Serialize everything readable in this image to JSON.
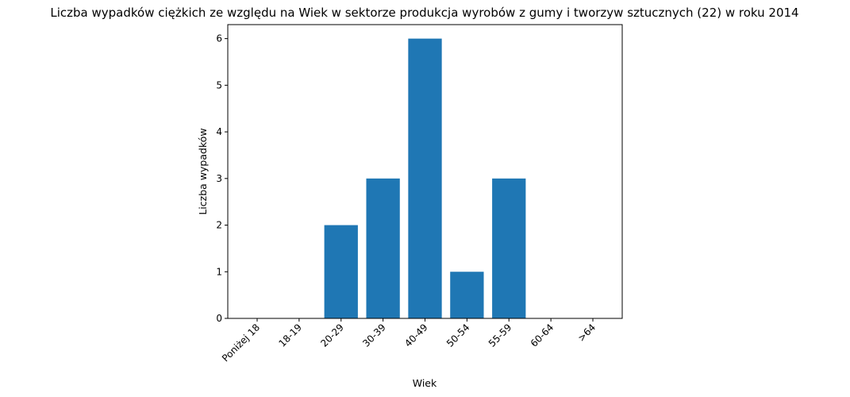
{
  "chart_data": {
    "type": "bar",
    "title": "Liczba wypadków ciężkich ze względu na Wiek w sektorze produkcja wyrobów z gumy i tworzyw sztucznych (22) w roku 2014",
    "xlabel": "Wiek",
    "ylabel": "Liczba wypadków",
    "categories": [
      "Poniżej 18",
      "18-19",
      "20-29",
      "30-39",
      "40-49",
      "50-54",
      "55-59",
      "60-64",
      ">64"
    ],
    "values": [
      0,
      0,
      2,
      3,
      6,
      1,
      3,
      0,
      0
    ],
    "ylim": [
      0,
      6.3
    ],
    "yticks": [
      0,
      1,
      2,
      3,
      4,
      5,
      6
    ],
    "color": "#1f77b4",
    "grid": false,
    "legend": "none"
  }
}
